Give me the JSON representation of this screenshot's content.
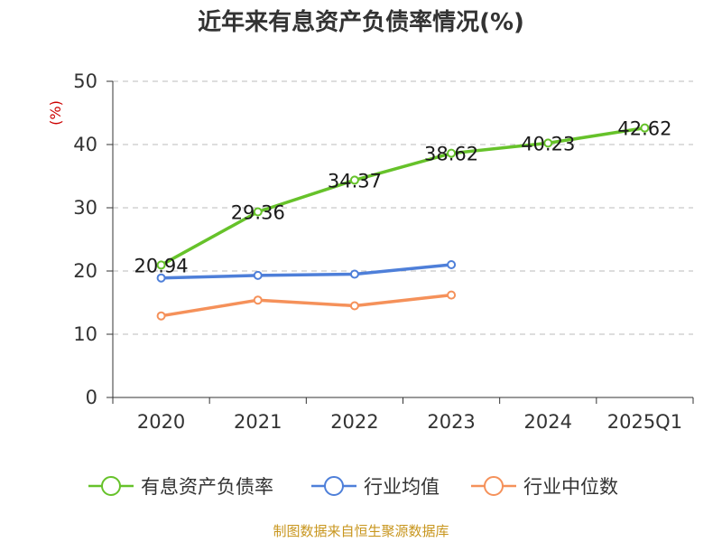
{
  "chart_data": {
    "type": "line",
    "title": "近年来有息资产负债率情况(%)",
    "ylabel": "(%)",
    "xlabel": "",
    "categories": [
      "2020",
      "2021",
      "2022",
      "2023",
      "2024",
      "2025Q1"
    ],
    "ylim": [
      0,
      50
    ],
    "yticks": [
      0,
      10,
      20,
      30,
      40,
      50
    ],
    "grid": true,
    "legend_position": "bottom",
    "series": [
      {
        "name": "有息资产负债率",
        "color": "#66c22a",
        "values": [
          20.94,
          29.36,
          34.37,
          38.62,
          40.23,
          42.62
        ],
        "labels": [
          "20.94",
          "29.36",
          "34.37",
          "38.62",
          "40.23",
          "42.62"
        ]
      },
      {
        "name": "行业均值",
        "color": "#4e7fd9",
        "values": [
          18.9,
          19.3,
          19.5,
          21.0,
          null,
          null
        ]
      },
      {
        "name": "行业中位数",
        "color": "#f5915a",
        "values": [
          12.9,
          15.4,
          14.5,
          16.2,
          null,
          null
        ]
      }
    ]
  },
  "footer": {
    "source": "制图数据来自恒生聚源数据库"
  }
}
